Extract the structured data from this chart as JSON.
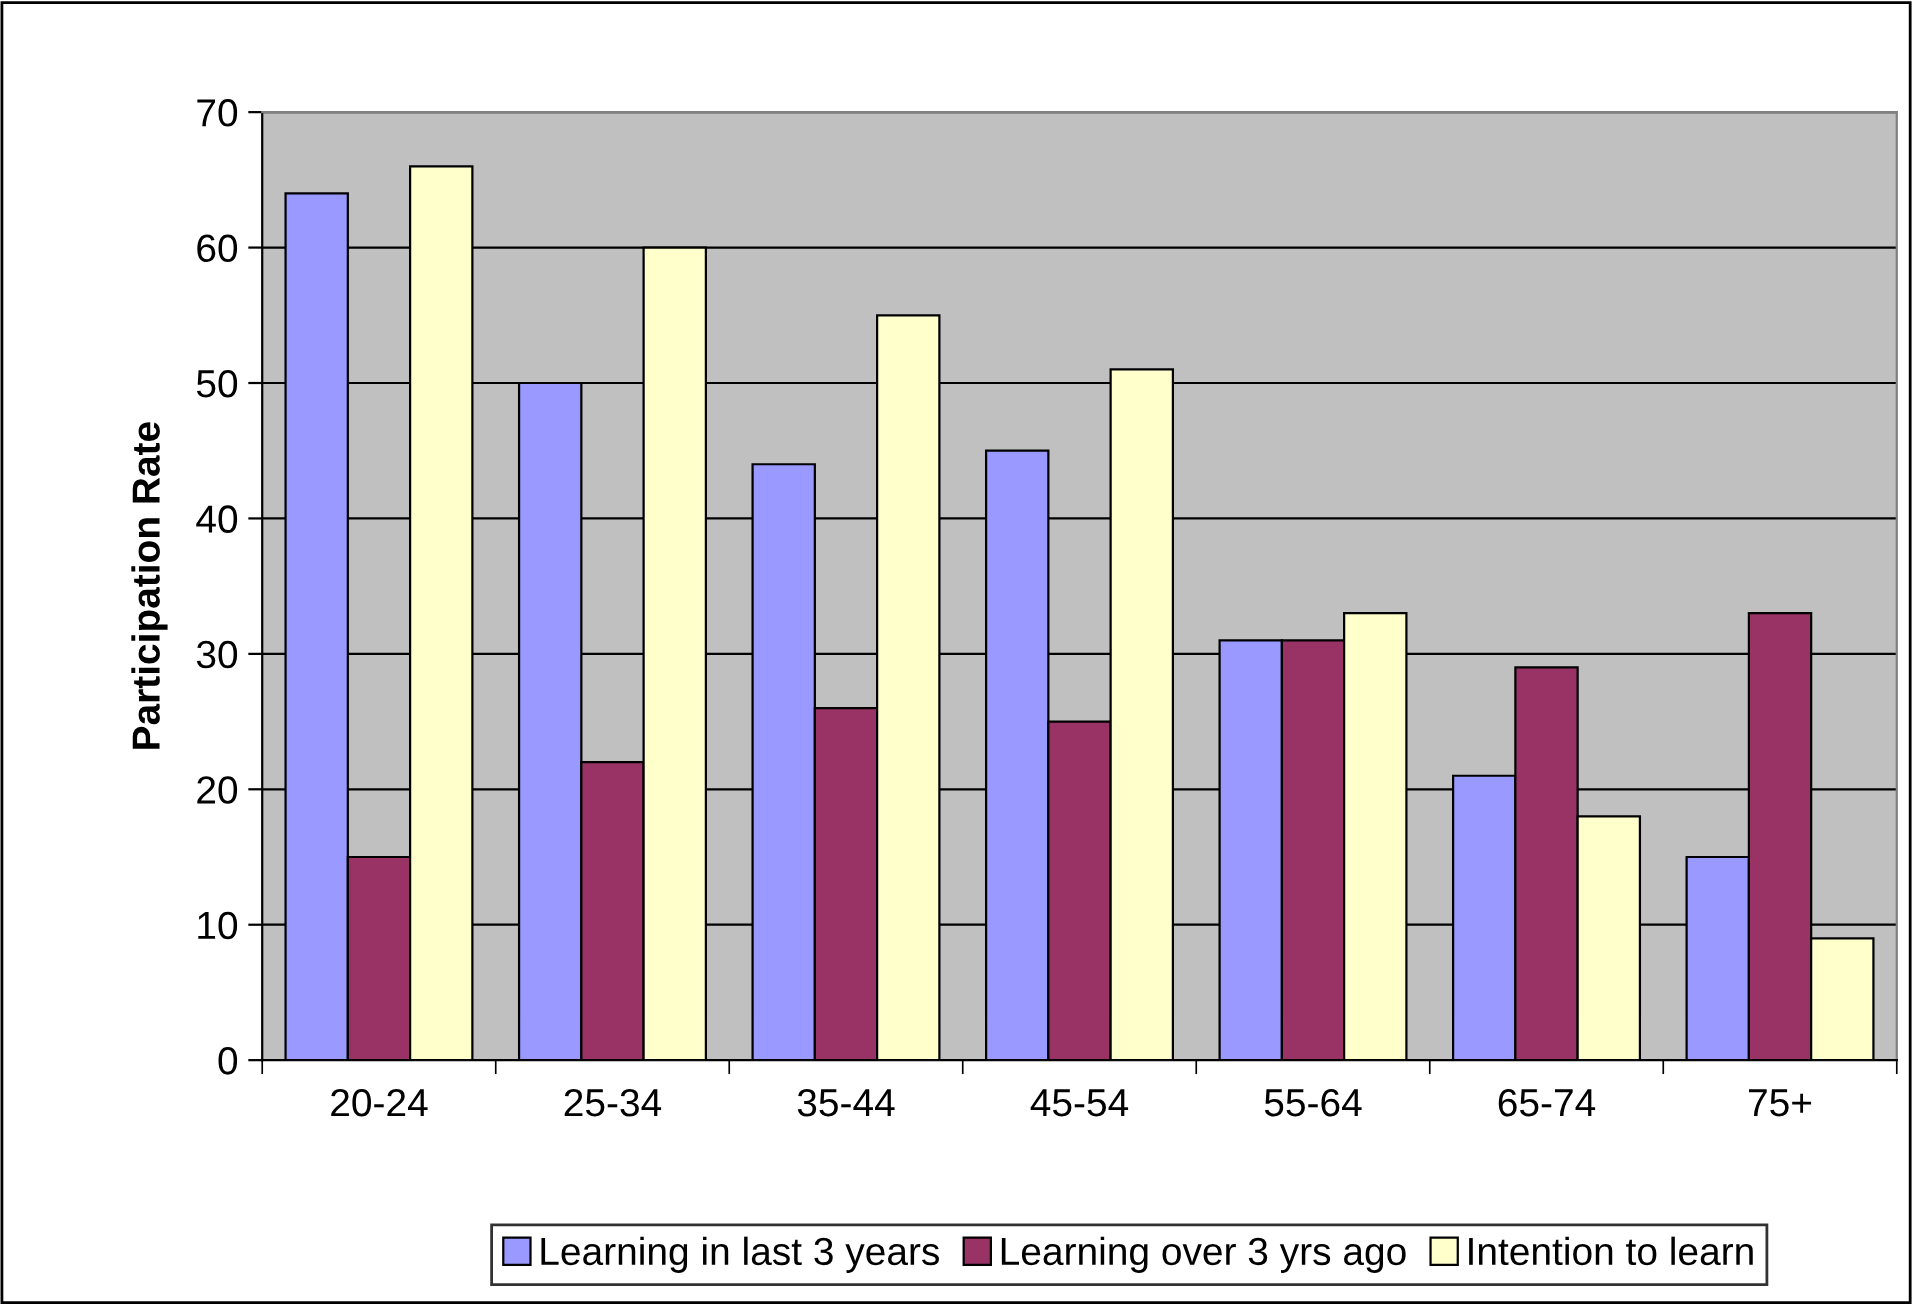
{
  "chart_data": {
    "type": "bar",
    "ylabel": "Participation Rate",
    "categories": [
      "20-24",
      "25-34",
      "35-44",
      "45-54",
      "55-64",
      "65-74",
      "75+"
    ],
    "series": [
      {
        "name": "Learning in last 3 years",
        "color": "#9999ff",
        "values": [
          64,
          50,
          44,
          45,
          31,
          21,
          15
        ]
      },
      {
        "name": "Learning over 3 yrs ago",
        "color": "#993366",
        "values": [
          15,
          22,
          26,
          25,
          31,
          29,
          33
        ]
      },
      {
        "name": "Intention to learn",
        "color": "#ffffcc",
        "values": [
          66,
          60,
          55,
          51,
          33,
          18,
          9
        ]
      }
    ],
    "ylim": [
      0,
      70
    ],
    "yticks": [
      0,
      10,
      20,
      30,
      40,
      50,
      60,
      70
    ],
    "grid": "y",
    "legend": "bottom"
  }
}
